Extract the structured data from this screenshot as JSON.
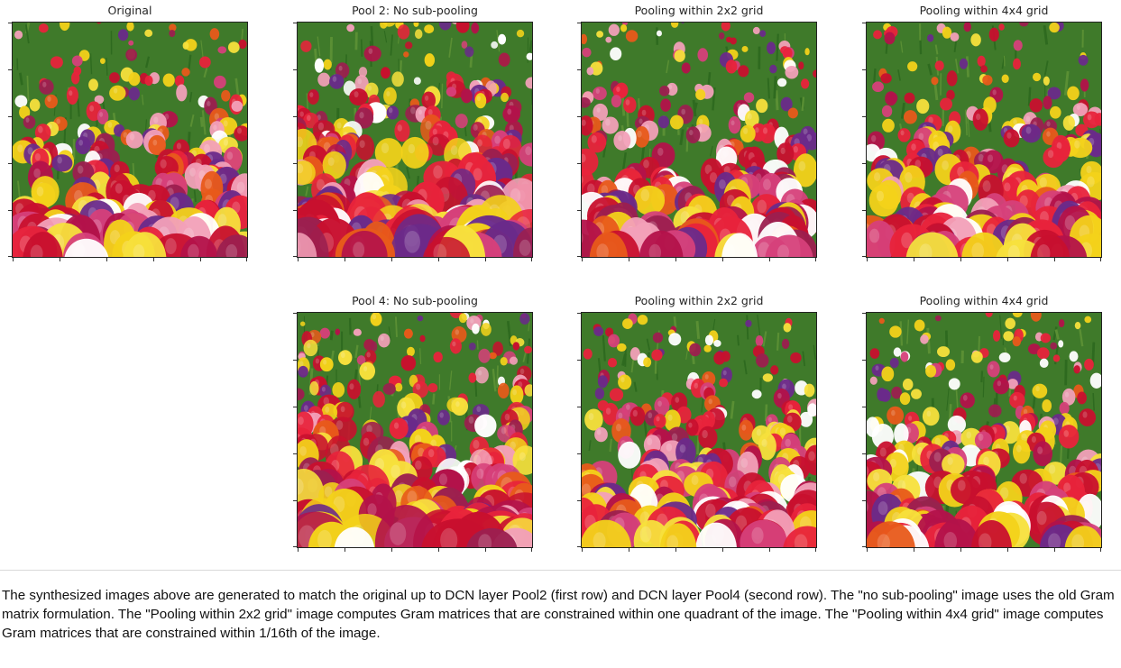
{
  "figure": {
    "row1": {
      "original_title": "Original",
      "pool2_title": "Pool 2: No sub-pooling",
      "pool2_2x2_title": "Pooling within 2x2 grid",
      "pool2_4x4_title": "Pooling within 4x4 grid"
    },
    "row2": {
      "pool4_title": "Pool 4: No sub-pooling",
      "pool4_2x2_title": "Pooling within 2x2 grid",
      "pool4_4x4_title": "Pooling within 4x4 grid"
    },
    "image_content": "tulip-field",
    "palette": [
      "#c8102e",
      "#e8233b",
      "#f3d21a",
      "#f7e03c",
      "#9c1f4f",
      "#d6407a",
      "#ffffff",
      "#f2a0b8",
      "#e85a1a",
      "#3f7a2a",
      "#6a2a8a",
      "#b3124a"
    ]
  },
  "caption": {
    "text": "The synthesized images above are generated to match the original up to DCN layer Pool2 (first row) and DCN layer Pool4 (second row). The \"no sub-pooling\" image uses the old Gram matrix formulation. The \"Pooling within 2x2 grid\" image computes Gram matrices that are constrained within one quadrant of the image. The \"Pooling within 4x4 grid\" image computes Gram matrices that are constrained within 1/16th of the image."
  }
}
